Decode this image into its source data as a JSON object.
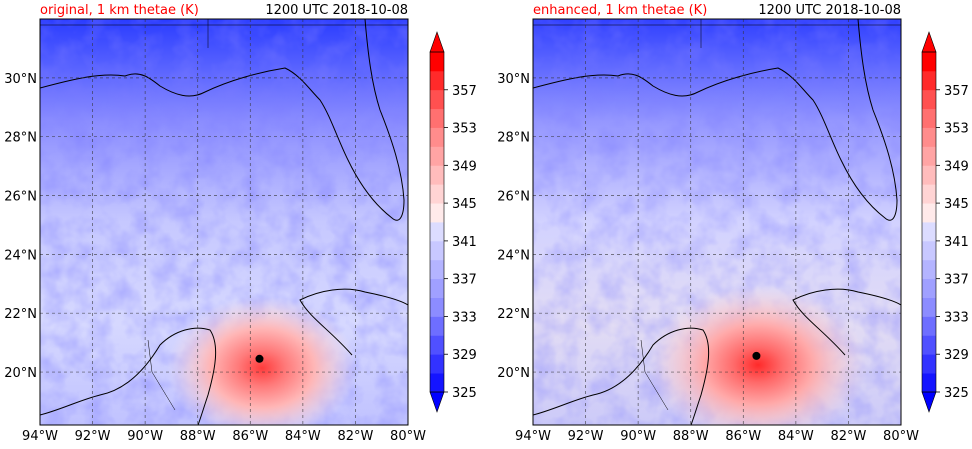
{
  "panels": [
    {
      "id": "left",
      "title_left": "original, 1 km thetae (K)",
      "title_right": "1200 UTC 2018-10-08",
      "center": {
        "lon": -85.65,
        "lat": 20.45
      }
    },
    {
      "id": "right",
      "title_left": "enhanced, 1 km thetae (K)",
      "title_right": "1200 UTC 2018-10-08",
      "center": {
        "lon": -85.5,
        "lat": 20.55
      }
    }
  ],
  "lon_ticks": [
    "94°W",
    "92°W",
    "90°W",
    "88°W",
    "86°W",
    "84°W",
    "82°W",
    "80°W"
  ],
  "lat_ticks": [
    "20°N",
    "22°N",
    "24°N",
    "26°N",
    "28°N",
    "30°N"
  ],
  "lon_values": [
    -94,
    -92,
    -90,
    -88,
    -86,
    -84,
    -82,
    -80
  ],
  "lat_values": [
    20,
    22,
    24,
    26,
    28,
    30
  ],
  "extent": {
    "lon_min": -94,
    "lon_max": -80,
    "lat_min": 18.2,
    "lat_max": 32
  },
  "colorbar": {
    "labels": [
      "325",
      "329",
      "333",
      "337",
      "341",
      "345",
      "349",
      "353",
      "357"
    ],
    "levels": [
      325,
      327,
      329,
      331,
      333,
      335,
      337,
      339,
      341,
      343,
      345,
      347,
      349,
      351,
      353,
      355,
      357,
      359
    ],
    "colors": [
      "#1414ff",
      "#3232ff",
      "#5050ff",
      "#6e6eff",
      "#8c8cff",
      "#a0a0ff",
      "#b4b4ff",
      "#c8c8ff",
      "#dcdcff",
      "#ffeaea",
      "#ffd4d4",
      "#ffbcbc",
      "#ffa4a4",
      "#ff8c8c",
      "#ff7070",
      "#ff5050",
      "#ff2a2a",
      "#ff0000"
    ],
    "extend_low_color": "#0000ff",
    "extend_high_color": "#ff0000"
  }
}
